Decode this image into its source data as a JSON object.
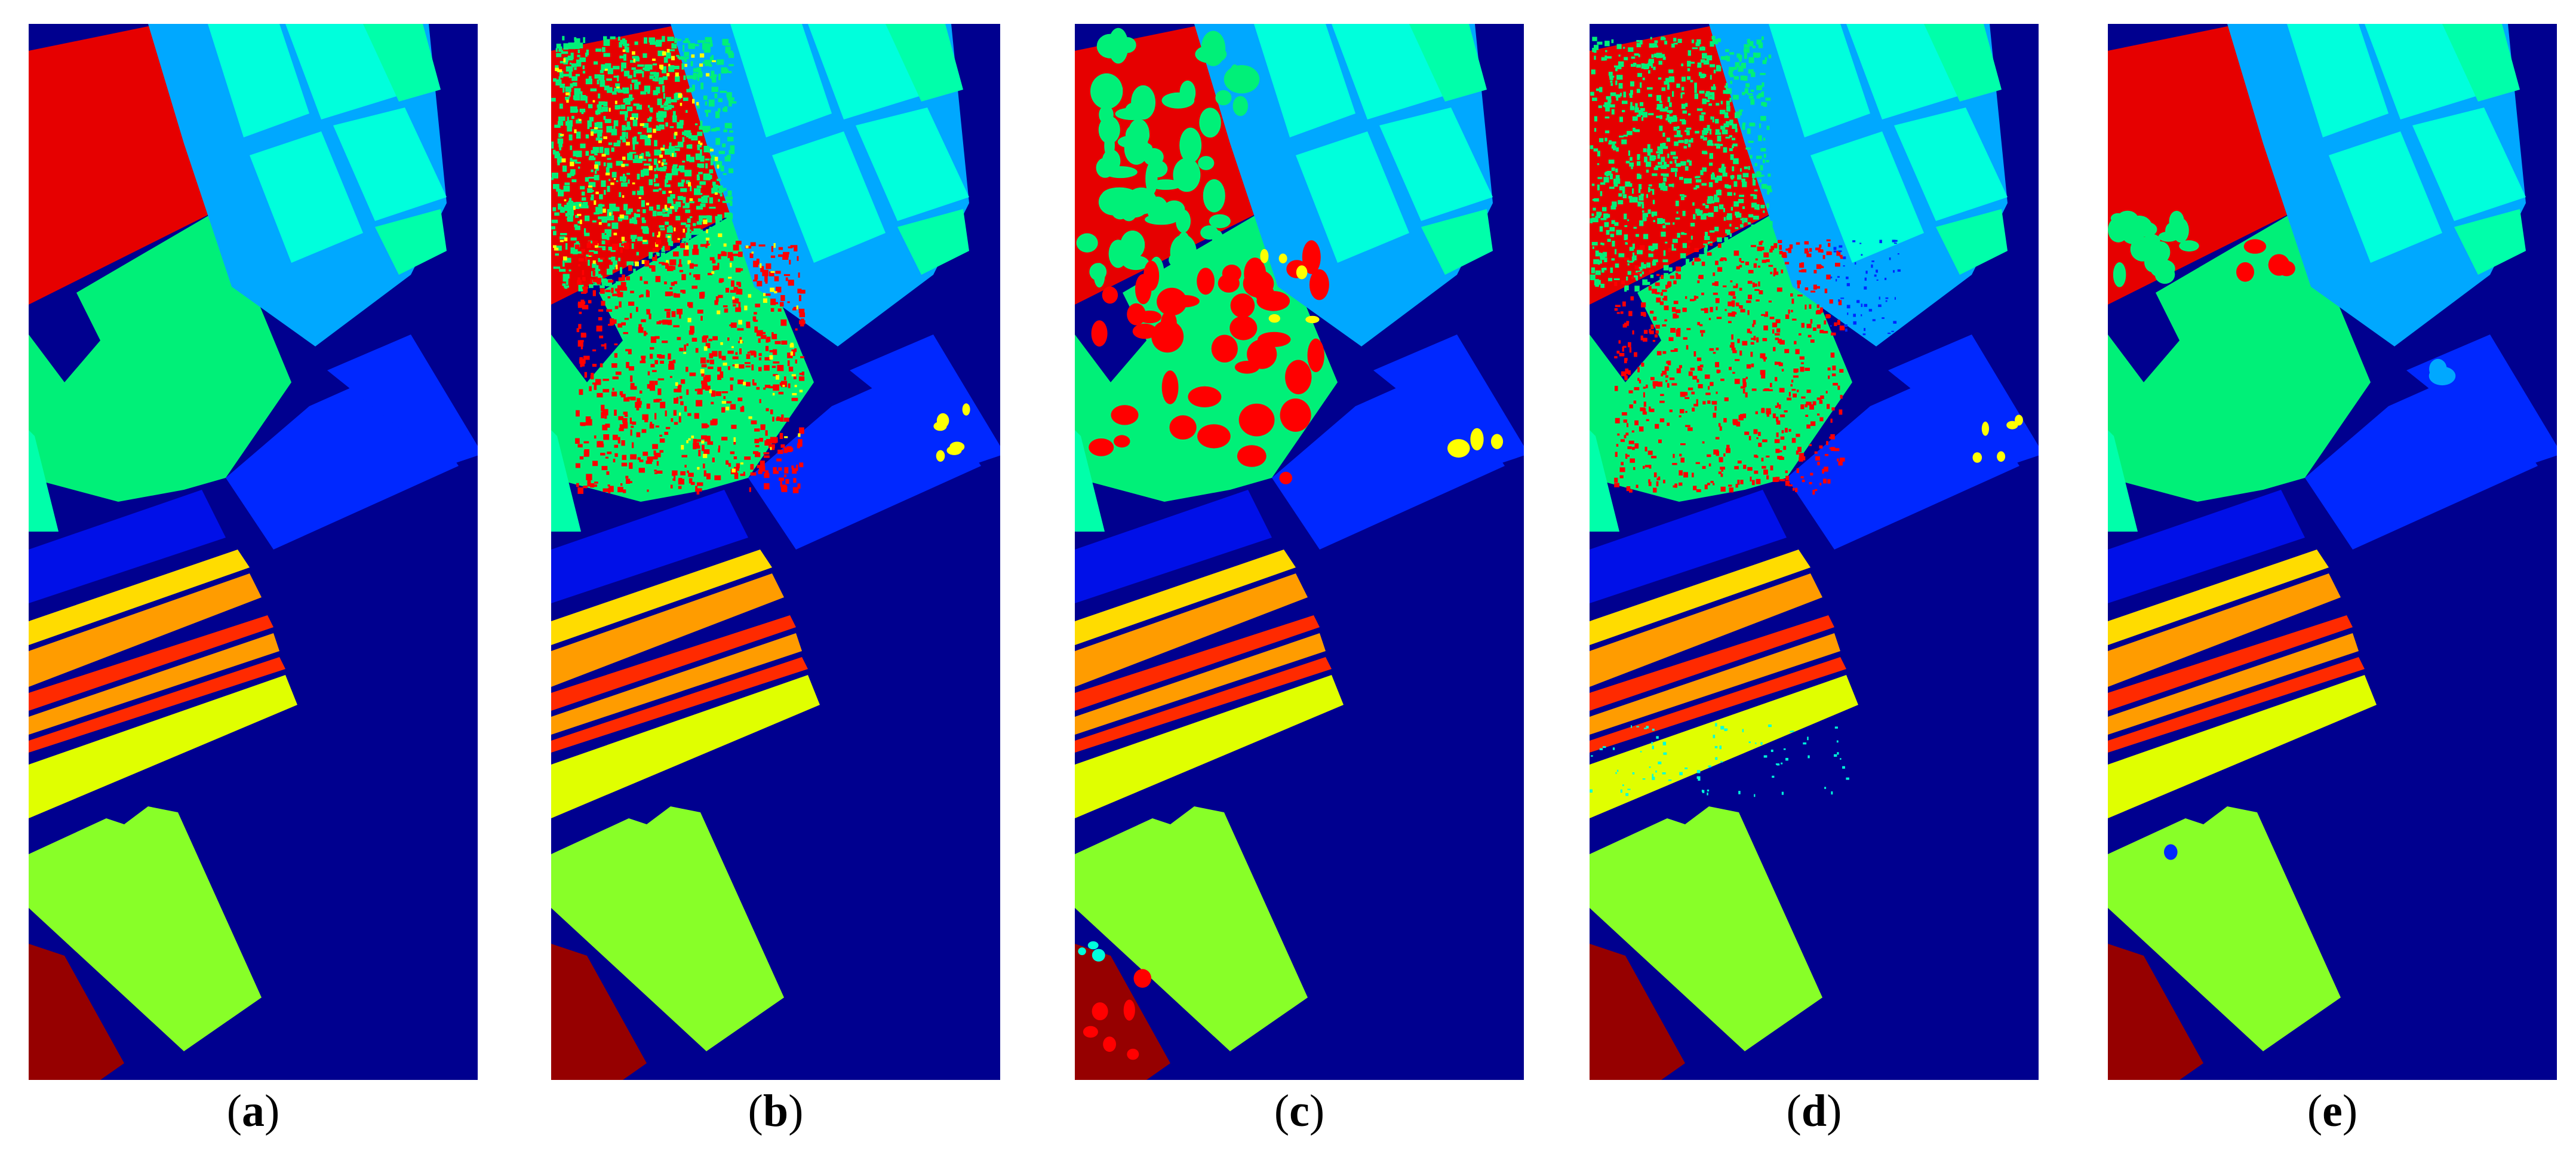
{
  "figure": {
    "panels": [
      {
        "id": "a",
        "caption_open": "(",
        "caption_letter": "a",
        "caption_close": ")",
        "variant": "ground-truth"
      },
      {
        "id": "b",
        "caption_open": "(",
        "caption_letter": "b",
        "caption_close": ")",
        "variant": "noisy-heavy"
      },
      {
        "id": "c",
        "caption_open": "(",
        "caption_letter": "c",
        "caption_close": ")",
        "variant": "noisy-patchy"
      },
      {
        "id": "d",
        "caption_open": "(",
        "caption_letter": "d",
        "caption_close": ")",
        "variant": "noisy-speckle"
      },
      {
        "id": "e",
        "caption_open": "(",
        "caption_letter": "e",
        "caption_close": ")",
        "variant": "smooth"
      }
    ],
    "class_colors": {
      "background": "#00008f",
      "red_field": "#e60000",
      "green_field": "#00f078",
      "lightblue": "#00a8ff",
      "cyan": "#00ffdc",
      "teal": "#00ffaa",
      "blue": "#0028ff",
      "darkblue_strip": "#0010e8",
      "yellow": "#ffdc00",
      "orange": "#ff9c00",
      "stripe_red": "#ff2a00",
      "yellowgreen": "#e0ff00",
      "lime": "#88ff28",
      "maroon": "#960000",
      "noise_red": "#ff0000",
      "noise_yellow": "#ffff00"
    }
  }
}
